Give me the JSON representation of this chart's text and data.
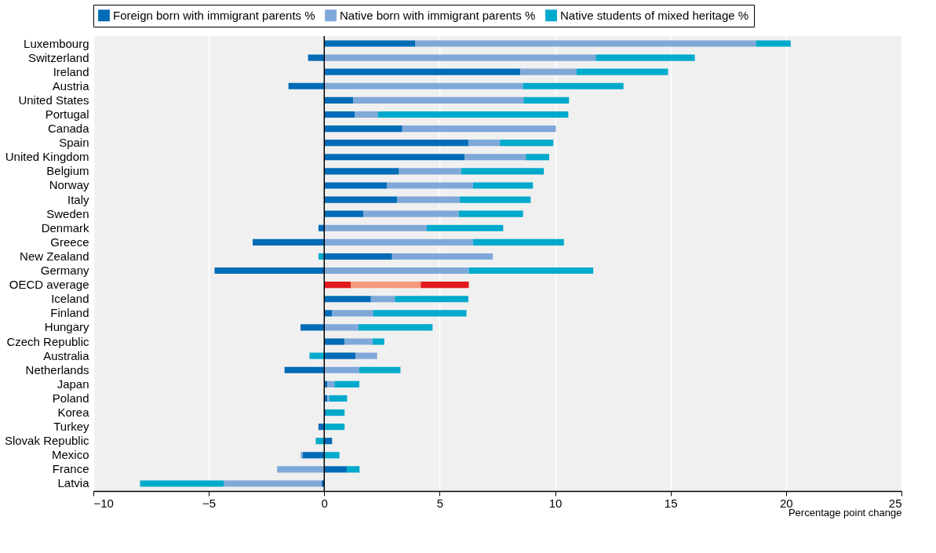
{
  "chart_data": {
    "type": "bar",
    "orientation": "horizontal",
    "stacked": true,
    "xlabel": "Percentage point change",
    "categories": [
      "Luxembourg",
      "Switzerland",
      "Ireland",
      "Austria",
      "United States",
      "Portugal",
      "Canada",
      "Spain",
      "United Kingdom",
      "Belgium",
      "Norway",
      "Italy",
      "Sweden",
      "Denmark",
      "Greece",
      "New Zealand",
      "Germany",
      "OECD average",
      "Iceland",
      "Finland",
      "Hungary",
      "Czech Republic",
      "Australia",
      "Netherlands",
      "Japan",
      "Poland",
      "Korea",
      "Turkey",
      "Slovak Republic",
      "Mexico",
      "France",
      "Latvia"
    ],
    "series": [
      {
        "name": "Foreign born with immigrant parents %",
        "color": "#006bb6",
        "colors": [
          "#006bb6",
          "#006bb6",
          "#006bb6",
          "#006bb6",
          "#006bb6",
          "#006bb6",
          "#006bb6",
          "#006bb6",
          "#006bb6",
          "#006bb6",
          "#006bb6",
          "#006bb6",
          "#006bb6",
          "#006bb6",
          "#006bb6",
          "#006bb6",
          "#006bb6",
          "#e31a1c",
          "#006bb6",
          "#006bb6",
          "#006bb6",
          "#006bb6",
          "#006bb6",
          "#006bb6",
          "#006bb6",
          "#006bb6",
          "#006bb6",
          "#006bb6",
          "#006bb6",
          "#006bb6",
          "#006bb6",
          "#006bb6"
        ],
        "values": [
          3.95,
          -0.7,
          8.5,
          -1.55,
          1.26,
          1.32,
          3.38,
          6.24,
          6.08,
          3.24,
          2.71,
          3.15,
          1.7,
          -0.25,
          -3.1,
          2.94,
          -4.75,
          1.15,
          2.02,
          0.34,
          -1.03,
          0.88,
          1.35,
          -1.72,
          0.13,
          0.13,
          0.06,
          -0.25,
          0.34,
          -0.94,
          0.98,
          -0.11
        ]
      },
      {
        "name": "Native born with immigrant parents %",
        "color": "#7fa8d9",
        "colors": [
          "#7fa8d9",
          "#7fa8d9",
          "#7fa8d9",
          "#7fa8d9",
          "#7fa8d9",
          "#7fa8d9",
          "#7fa8d9",
          "#7fa8d9",
          "#7fa8d9",
          "#7fa8d9",
          "#7fa8d9",
          "#7fa8d9",
          "#7fa8d9",
          "#7fa8d9",
          "#7fa8d9",
          "#7fa8d9",
          "#7fa8d9",
          "#f4997a",
          "#7fa8d9",
          "#7fa8d9",
          "#7fa8d9",
          "#7fa8d9",
          "#7fa8d9",
          "#7fa8d9",
          "#7fa8d9",
          "#7fa8d9",
          "#7fa8d9",
          "#7fa8d9",
          "#7fa8d9",
          "#7fa8d9",
          "#7fa8d9",
          "#7fa8d9"
        ],
        "values": [
          14.75,
          11.76,
          2.42,
          8.6,
          7.37,
          1.0,
          6.65,
          1.37,
          2.65,
          2.69,
          3.73,
          2.72,
          4.13,
          4.44,
          6.44,
          4.36,
          6.26,
          3.03,
          1.04,
          1.77,
          1.48,
          1.21,
          0.94,
          1.52,
          0.31,
          0.08,
          0,
          0,
          0,
          -0.08,
          -2.04,
          -4.24
        ]
      },
      {
        "name": "Native students of mixed heritage %",
        "color": "#00aacc",
        "colors": [
          "#00aacc",
          "#00aacc",
          "#00aacc",
          "#00aacc",
          "#00aacc",
          "#00aacc",
          "#00aacc",
          "#00aacc",
          "#00aacc",
          "#00aacc",
          "#00aacc",
          "#00aacc",
          "#00aacc",
          "#00aacc",
          "#00aacc",
          "#00aacc",
          "#00aacc",
          "#e31a1c",
          "#00aacc",
          "#00aacc",
          "#00aacc",
          "#00aacc",
          "#00aacc",
          "#00aacc",
          "#00aacc",
          "#00aacc",
          "#00aacc",
          "#00aacc",
          "#00aacc",
          "#00aacc",
          "#00aacc",
          "#00aacc"
        ],
        "values": [
          1.5,
          4.29,
          3.97,
          4.36,
          1.97,
          8.25,
          0,
          2.31,
          1.01,
          3.58,
          2.6,
          3.07,
          2.78,
          3.31,
          3.94,
          -0.25,
          5.39,
          2.08,
          3.18,
          4.05,
          3.21,
          0.51,
          -0.64,
          1.78,
          1.08,
          0.78,
          0.82,
          0.88,
          -0.37,
          0.66,
          0.55,
          -3.63
        ]
      }
    ],
    "xlim": [
      -10,
      25
    ],
    "xticks": [
      -10,
      -5,
      0,
      5,
      10,
      15,
      20,
      25
    ],
    "ref_lines": [
      {
        "axis": "x",
        "value": 0,
        "color": "#000000"
      }
    ],
    "grid": "x",
    "legend": "top"
  }
}
